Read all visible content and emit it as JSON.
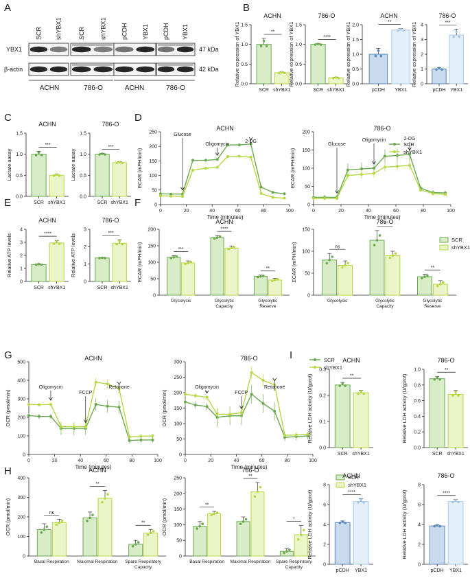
{
  "figure": {
    "panel_letters": [
      "A",
      "B",
      "C",
      "D",
      "E",
      "F",
      "G",
      "H",
      "I"
    ],
    "colors": {
      "dark_green": "#6aa84f",
      "light_green": "#b5d842",
      "dark_fill": "#d9ecc8",
      "light_fill": "#ecf5c8",
      "dark_blue": "#5b86b8",
      "light_blue": "#a7c9e6",
      "dark_bfill": "#c9daee",
      "light_bfill": "#e3eff9",
      "blot_dark": "#1a1a1a"
    }
  },
  "blot": {
    "group_labels": [
      "ACHN",
      "786-O",
      "ACHN",
      "786-O"
    ],
    "lanes": [
      "SCR",
      "shYBX1",
      "SCR",
      "shYBX1",
      "pCDH",
      "YBX1",
      "pCDH",
      "YBX1"
    ],
    "rows": [
      "YBX1",
      "β-actin"
    ],
    "sizes": [
      "47 kDa",
      "42 kDa"
    ]
  },
  "chart_data": [
    {
      "id": "B1",
      "type": "bar",
      "title": "ACHN",
      "ylabel": "Relative expression of YBX1",
      "categories": [
        "SCR",
        "shYBX1"
      ],
      "values": [
        1.0,
        0.28
      ],
      "errors": [
        0.15,
        0.02
      ],
      "ylim": [
        0,
        1.5
      ],
      "ticks": [
        0,
        0.5,
        1.0,
        1.5
      ],
      "sig": "**",
      "palette": "green"
    },
    {
      "id": "B2",
      "type": "bar",
      "title": "786-O",
      "ylabel": "Relative expression of YBX1",
      "categories": [
        "SCR",
        "shYBX1"
      ],
      "values": [
        1.0,
        0.15
      ],
      "errors": [
        0.02,
        0.02
      ],
      "ylim": [
        0,
        1.5
      ],
      "ticks": [
        0,
        0.5,
        1.0,
        1.5
      ],
      "sig": "****",
      "palette": "green"
    },
    {
      "id": "B3",
      "type": "bar",
      "title": "ACHN",
      "ylabel": "Relative expression of YBX1",
      "categories": [
        "pCDH",
        "YBX1"
      ],
      "values": [
        1.0,
        1.82
      ],
      "errors": [
        0.2,
        0.05
      ],
      "ylim": [
        0,
        2.0
      ],
      "ticks": [
        0,
        0.5,
        1.0,
        1.5,
        2.0
      ],
      "sig": "**",
      "palette": "blue"
    },
    {
      "id": "B4",
      "type": "bar",
      "title": "786-O",
      "ylabel": "Relative expression of YBX1",
      "categories": [
        "pCDH",
        "YBX1"
      ],
      "values": [
        1.0,
        3.3
      ],
      "errors": [
        0.1,
        0.4
      ],
      "ylim": [
        0,
        4
      ],
      "ticks": [
        0,
        1,
        2,
        3,
        4
      ],
      "sig": "***",
      "palette": "blue"
    },
    {
      "id": "C1",
      "type": "bar",
      "title": "ACHN",
      "ylabel": "Lactate aasay",
      "categories": [
        "SCR",
        "shYBX1"
      ],
      "values": [
        1.0,
        0.5
      ],
      "errors": [
        0.07,
        0.03
      ],
      "ylim": [
        0,
        1.5
      ],
      "ticks": [
        0,
        0.5,
        1.0,
        1.5
      ],
      "sig": "***",
      "palette": "green"
    },
    {
      "id": "C2",
      "type": "bar",
      "title": "786-O",
      "ylabel": "Lactate aasay",
      "categories": [
        "SCR",
        "shYBX1"
      ],
      "values": [
        1.0,
        0.8
      ],
      "errors": [
        0.02,
        0.02
      ],
      "ylim": [
        0,
        1.5
      ],
      "ticks": [
        0,
        0.5,
        1.0,
        1.5
      ],
      "sig": "***",
      "palette": "green"
    },
    {
      "id": "D1",
      "type": "bar",
      "title": "ACHN",
      "ylabel": "Relative ATP levels",
      "categories": [
        "SCR",
        "shYBX1"
      ],
      "values": [
        1.3,
        2.95
      ],
      "errors": [
        0.05,
        0.2
      ],
      "ylim": [
        0,
        4
      ],
      "ticks": [
        0,
        1,
        2,
        3,
        4
      ],
      "sig": "****",
      "palette": "green"
    },
    {
      "id": "D2",
      "type": "bar",
      "title": "786-O",
      "ylabel": "Relative ATP levels",
      "categories": [
        "SCR",
        "shYBX1"
      ],
      "values": [
        1.35,
        2.2
      ],
      "errors": [
        0.02,
        0.2
      ],
      "ylim": [
        0,
        3
      ],
      "ticks": [
        0,
        1,
        2,
        3
      ],
      "sig": "***",
      "palette": "green"
    },
    {
      "id": "E1",
      "type": "line",
      "title": "ACHN",
      "xlabel": "Time (minutes)",
      "ylabel": "ECAR (mPH/min)",
      "xlim": [
        0,
        100
      ],
      "ylim": [
        0,
        250
      ],
      "xticks": [
        0,
        20,
        40,
        60,
        80,
        100
      ],
      "yticks": [
        0,
        50,
        100,
        150,
        200,
        250
      ],
      "x": [
        0,
        8,
        17,
        25,
        35,
        44,
        52,
        61,
        70,
        78,
        87,
        96
      ],
      "series": [
        {
          "name": "SCR",
          "values": [
            37,
            36,
            36,
            152,
            152,
            155,
            205,
            205,
            208,
            60,
            42,
            37
          ],
          "err": 5
        },
        {
          "name": "shYBX1",
          "values": [
            30,
            29,
            28,
            118,
            125,
            128,
            165,
            166,
            163,
            38,
            25,
            22
          ],
          "err": 5
        }
      ],
      "annotations": [
        {
          "text": "Glucose",
          "x": 17
        },
        {
          "text": "Oligomycin",
          "x": 44
        },
        {
          "text": "2-DG",
          "x": 70
        }
      ]
    },
    {
      "id": "E2",
      "type": "line",
      "title": "786-O",
      "xlabel": "Time (minutes)",
      "ylabel": "ECAR (mPH/min)",
      "xlim": [
        0,
        100
      ],
      "ylim": [
        0,
        200
      ],
      "xticks": [
        0,
        20,
        40,
        60,
        80,
        100
      ],
      "yticks": [
        0,
        50,
        100,
        150,
        200
      ],
      "x": [
        0,
        8,
        17,
        25,
        35,
        44,
        52,
        61,
        70,
        78,
        87,
        96
      ],
      "series": [
        {
          "name": "SCR",
          "values": [
            20,
            20,
            20,
            95,
            98,
            100,
            133,
            135,
            138,
            45,
            33,
            32
          ],
          "err": 18
        },
        {
          "name": "shYBX1",
          "values": [
            17,
            17,
            17,
            80,
            83,
            86,
            103,
            105,
            108,
            40,
            30,
            28
          ],
          "err": 12
        }
      ],
      "annotations": [
        {
          "text": "Glucose",
          "x": 17
        },
        {
          "text": "Oligomycin",
          "x": 44
        },
        {
          "text": "2-DG",
          "x": 70
        }
      ]
    },
    {
      "id": "F1",
      "type": "bar",
      "title": "ACHN",
      "ylabel": "ECAR (mPH/min)",
      "categories": [
        "Glycolysis",
        "Glycolytic Capacity",
        "Glycolytic Reserve"
      ],
      "series": [
        {
          "name": "SCR",
          "values": [
            115,
            175,
            57
          ]
        },
        {
          "name": "shYBX1",
          "values": [
            98,
            143,
            46
          ]
        }
      ],
      "errors": [
        [
          5,
          6,
          4
        ],
        [
          6,
          6,
          5
        ]
      ],
      "ylim": [
        0,
        200
      ],
      "ticks": [
        0,
        50,
        100,
        150,
        200
      ],
      "sig": [
        "***",
        "****",
        "**"
      ]
    },
    {
      "id": "F2",
      "type": "bar",
      "title": "786-O",
      "ylabel": "ECAR (mPH/min)",
      "categories": [
        "Glycolysis",
        "Glycolytic Capacity",
        "Glycolytic Reserve"
      ],
      "series": [
        {
          "name": "SCR",
          "values": [
            80,
            125,
            42
          ]
        },
        {
          "name": "shYBX1",
          "values": [
            68,
            90,
            25
          ]
        }
      ],
      "errors": [
        [
          15,
          22,
          6
        ],
        [
          10,
          10,
          8
        ]
      ],
      "ylim": [
        0,
        150
      ],
      "ticks": [
        0,
        50,
        100,
        150
      ],
      "sig": [
        "ns",
        "*",
        "**"
      ]
    },
    {
      "id": "G1",
      "type": "line",
      "title": "ACHN",
      "xlabel": "Time (minutes)",
      "ylabel": "OCR (pmol/min)",
      "xlim": [
        0,
        100
      ],
      "ylim": [
        0,
        500
      ],
      "xticks": [
        0,
        20,
        40,
        60,
        80,
        100
      ],
      "yticks": [
        0,
        100,
        200,
        300,
        400,
        500
      ],
      "x": [
        0,
        8,
        17,
        25,
        35,
        44,
        52,
        61,
        70,
        78,
        87,
        96
      ],
      "series": [
        {
          "name": "SCR",
          "values": [
            210,
            205,
            205,
            140,
            140,
            140,
            270,
            260,
            255,
            75,
            78,
            78
          ],
          "err": 35
        },
        {
          "name": "shYBX1",
          "values": [
            270,
            268,
            270,
            150,
            150,
            150,
            390,
            380,
            355,
            95,
            98,
            100
          ],
          "err": 25
        }
      ],
      "annotations": [
        {
          "text": "Oligomycin",
          "x": 17
        },
        {
          "text": "FCCP",
          "x": 44
        },
        {
          "text": "Retonone",
          "x": 70
        }
      ]
    },
    {
      "id": "G2",
      "type": "line",
      "title": "786-O",
      "xlabel": "Time (minutes)",
      "ylabel": "OCR (pmol/min)",
      "xlim": [
        0,
        100
      ],
      "ylim": [
        0,
        300
      ],
      "xticks": [
        0,
        20,
        40,
        60,
        80,
        100
      ],
      "yticks": [
        0,
        50,
        100,
        150,
        200,
        250,
        300
      ],
      "x": [
        0,
        8,
        17,
        25,
        35,
        44,
        52,
        61,
        70,
        78,
        87,
        96
      ],
      "series": [
        {
          "name": "SCR",
          "values": [
            170,
            160,
            155,
            120,
            125,
            125,
            195,
            165,
            140,
            55,
            58,
            60
          ],
          "err": 30
        },
        {
          "name": "shYBX1",
          "values": [
            195,
            190,
            185,
            130,
            130,
            135,
            265,
            240,
            225,
            62,
            63,
            65
          ],
          "err": 20
        }
      ],
      "annotations": [
        {
          "text": "Oligomycin",
          "x": 17
        },
        {
          "text": "FCCP",
          "x": 44
        },
        {
          "text": "Retonone",
          "x": 70
        }
      ]
    },
    {
      "id": "H1",
      "type": "bar",
      "title": "ACHN",
      "ylabel": "OCR (pmol/min)",
      "categories": [
        "Basal Respiration",
        "Maximal Respiration",
        "Spare Respiratory Capacity"
      ],
      "series": [
        {
          "name": "SCR",
          "values": [
            135,
            195,
            60
          ]
        },
        {
          "name": "shYBX1",
          "values": [
            170,
            295,
            118
          ]
        }
      ],
      "errors": [
        [
          30,
          30,
          20
        ],
        [
          18,
          40,
          18
        ]
      ],
      "ylim": [
        0,
        400
      ],
      "ticks": [
        0,
        100,
        200,
        300,
        400
      ],
      "sig": [
        "ns",
        "**",
        "**"
      ]
    },
    {
      "id": "H2",
      "type": "bar",
      "title": "786-O",
      "ylabel": "OCR (pmol/min)",
      "categories": [
        "Basal Respiration",
        "Maximal Respiration",
        "Spare Respiratory Capacity"
      ],
      "series": [
        {
          "name": "SCR",
          "values": [
            95,
            110,
            15
          ]
        },
        {
          "name": "shYBX1",
          "values": [
            135,
            205,
            68
          ]
        }
      ],
      "errors": [
        [
          15,
          15,
          10
        ],
        [
          8,
          30,
          30
        ]
      ],
      "ylim": [
        0,
        250
      ],
      "ticks": [
        0,
        50,
        100,
        150,
        200,
        250
      ],
      "sig": [
        "**",
        "**",
        "*"
      ]
    },
    {
      "id": "I1",
      "type": "bar",
      "title": "ACHN",
      "ylabel": "Relative LDH activity (U/gprot)",
      "categories": [
        "SCR",
        "shYBX1"
      ],
      "values": [
        0.24,
        0.21
      ],
      "errors": [
        0.01,
        0.01
      ],
      "ylim": [
        0,
        0.3
      ],
      "ticks": [
        0.0,
        0.1,
        0.2,
        0.3
      ],
      "sig": "**",
      "palette": "green"
    },
    {
      "id": "I2",
      "type": "bar",
      "title": "786-O",
      "ylabel": "Relative LDH activity (U/gprot)",
      "categories": [
        "SCR",
        "shYBX1"
      ],
      "values": [
        0.88,
        0.68
      ],
      "errors": [
        0.03,
        0.05
      ],
      "ylim": [
        0,
        1.0
      ],
      "ticks": [
        0.0,
        0.2,
        0.4,
        0.6,
        0.8,
        1.0
      ],
      "sig": "**",
      "palette": "green"
    },
    {
      "id": "I3",
      "type": "bar",
      "title": "ACHN",
      "ylabel": "Relative LDH activity (U/gprot)",
      "categories": [
        "pCDH",
        "YBX1"
      ],
      "values": [
        4.2,
        6.3
      ],
      "errors": [
        0.15,
        0.3
      ],
      "ylim": [
        0,
        8
      ],
      "ticks": [
        0,
        2,
        4,
        6,
        8
      ],
      "sig": "****",
      "palette": "blue"
    },
    {
      "id": "I4",
      "type": "bar",
      "title": "786-O",
      "ylabel": "Relative LDH activity (U/gprot)",
      "categories": [
        "pCDH",
        "YBX1"
      ],
      "values": [
        3.85,
        6.3
      ],
      "errors": [
        0.1,
        0.2
      ],
      "ylim": [
        0,
        8
      ],
      "ticks": [
        0,
        2,
        4,
        6,
        8
      ],
      "sig": "****",
      "palette": "blue"
    }
  ]
}
